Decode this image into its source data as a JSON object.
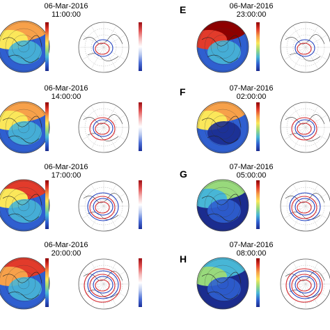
{
  "panels": [
    {
      "id": "a",
      "letter": "",
      "date": "06-Mar-2016",
      "time": "11:00:00",
      "scheme": 0
    },
    {
      "id": "b",
      "letter": "",
      "date": "06-Mar-2016",
      "time": "14:00:00",
      "scheme": 1
    },
    {
      "id": "c",
      "letter": "",
      "date": "06-Mar-2016",
      "time": "17:00:00",
      "scheme": 2
    },
    {
      "id": "d",
      "letter": "",
      "date": "06-Mar-2016",
      "time": "20:00:00",
      "scheme": 3
    },
    {
      "id": "e",
      "letter": "E",
      "date": "06-Mar-2016",
      "time": "23:00:00",
      "scheme": 4
    },
    {
      "id": "f",
      "letter": "F",
      "date": "07-Mar-2016",
      "time": "02:00:00",
      "scheme": 5
    },
    {
      "id": "g",
      "letter": "G",
      "date": "07-Mar-2016",
      "time": "05:00:00",
      "scheme": 6
    },
    {
      "id": "h",
      "letter": "H",
      "date": "07-Mar-2016",
      "time": "08:00:00",
      "scheme": 7
    }
  ],
  "colors": {
    "dark_red": "#8e0000",
    "red": "#e23b2b",
    "orange": "#f7a14a",
    "yellow": "#fbe75a",
    "green": "#98d97c",
    "cyan": "#48b6d6",
    "blue": "#2f5fd0",
    "navy": "#1b2c8f",
    "pos_contour": "#d6262c",
    "neg_contour": "#1f3fbf"
  }
}
